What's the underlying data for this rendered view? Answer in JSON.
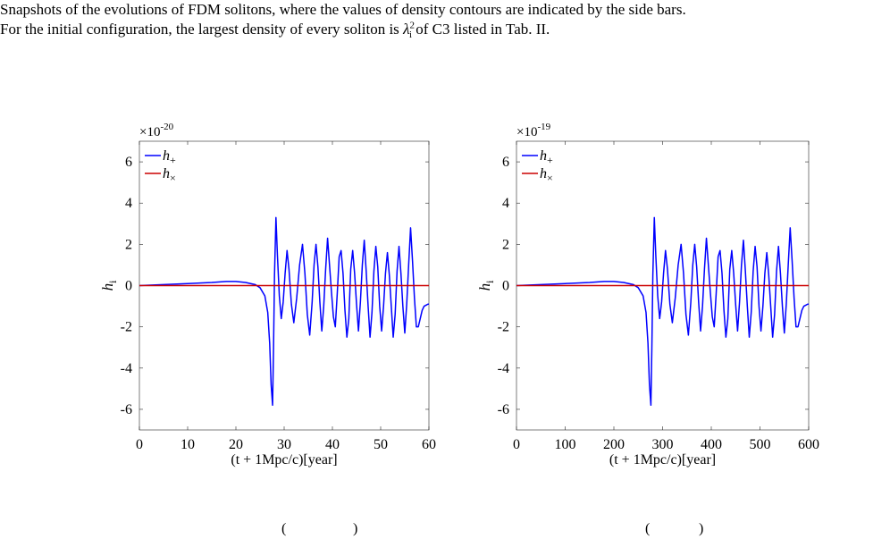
{
  "caption": {
    "line1": "Snapshots of the evolutions of FDM solitons, where the values of density contours are indicated by the side bars.",
    "line2_a": "For the initial configuration, the largest density of every soliton is ",
    "line2_sym": "λ",
    "line2_sup": "2",
    "line2_sub": "i",
    "line2_b": " of C3 listed in Tab. II."
  },
  "subcaptions": [
    "(",
    ")",
    "(",
    ")"
  ],
  "chart_data": [
    {
      "type": "line",
      "multiplier_base": "×10",
      "multiplier_exp": "-20",
      "ylabel": "h_i",
      "xlabel": "(t + 1Mpc/c)[year]",
      "xlim": [
        0,
        60
      ],
      "ylim": [
        -7,
        7
      ],
      "xticks": [
        0,
        10,
        20,
        30,
        40,
        50,
        60
      ],
      "yticks": [
        -6,
        -4,
        -2,
        0,
        2,
        4,
        6
      ],
      "xtick_labels": [
        "0",
        "10",
        "20",
        "30",
        "40",
        "50",
        "60"
      ],
      "ytick_labels": [
        "-6",
        "-4",
        "-2",
        "0",
        "2",
        "4",
        "6"
      ],
      "legend_position": "top-left",
      "series": [
        {
          "name": "h_+",
          "color": "#0000ff",
          "x": [
            0,
            5,
            10,
            15,
            18,
            20,
            22,
            24,
            25,
            26,
            26.6,
            27.0,
            27.3,
            27.6,
            27.8,
            28.0,
            28.3,
            28.6,
            29.0,
            29.4,
            29.8,
            30.2,
            30.6,
            31.0,
            31.5,
            32.0,
            32.6,
            33.2,
            33.8,
            34.3,
            34.8,
            35.3,
            35.8,
            36.2,
            36.6,
            37.0,
            37.4,
            37.8,
            38.2,
            38.6,
            39.0,
            39.4,
            39.8,
            40.2,
            40.6,
            41.0,
            41.4,
            41.8,
            42.2,
            42.6,
            43.0,
            43.4,
            43.8,
            44.2,
            44.6,
            45.0,
            45.4,
            45.8,
            46.2,
            46.6,
            47.0,
            47.4,
            47.8,
            48.2,
            48.6,
            49.0,
            49.4,
            49.8,
            50.2,
            50.6,
            51.0,
            51.4,
            51.8,
            52.2,
            52.6,
            53.0,
            53.4,
            53.8,
            54.2,
            54.6,
            55.0,
            55.4,
            55.8,
            56.2,
            56.6,
            57.0,
            57.4,
            57.8,
            58.2,
            58.6,
            59.0,
            59.4,
            59.8,
            60
          ],
          "y": [
            0,
            0.05,
            0.1,
            0.15,
            0.2,
            0.2,
            0.15,
            0.05,
            -0.1,
            -0.5,
            -1.3,
            -2.8,
            -4.8,
            -5.8,
            -3.0,
            0.5,
            3.3,
            1.5,
            -0.5,
            -1.6,
            -0.8,
            0.6,
            1.7,
            0.8,
            -0.9,
            -1.8,
            -0.6,
            1.0,
            2.0,
            0.6,
            -1.4,
            -2.4,
            -0.8,
            1.0,
            2.0,
            0.9,
            -0.8,
            -2.2,
            -1.0,
            0.8,
            2.3,
            1.0,
            -0.3,
            -1.5,
            -2.0,
            -0.4,
            1.4,
            1.7,
            0.6,
            -1.2,
            -2.5,
            -1.6,
            0.8,
            1.7,
            0.6,
            -0.9,
            -2.2,
            -0.8,
            1.0,
            2.2,
            0.7,
            -1.0,
            -2.5,
            -1.3,
            0.7,
            1.9,
            0.9,
            -1.0,
            -2.2,
            -1.0,
            0.6,
            1.6,
            0.5,
            -1.0,
            -2.5,
            -1.4,
            0.7,
            1.9,
            0.6,
            -1.0,
            -2.3,
            -0.9,
            1.0,
            2.8,
            1.2,
            -0.6,
            -2.0,
            -2.0,
            -1.6,
            -1.2,
            -1.0,
            -0.95,
            -0.9,
            -0.9
          ]
        },
        {
          "name": "h_×",
          "color": "#cc0000",
          "x": [
            0,
            60
          ],
          "y": [
            0,
            0
          ]
        }
      ]
    },
    {
      "type": "line",
      "multiplier_base": "×10",
      "multiplier_exp": "-19",
      "ylabel": "h_i",
      "xlabel": "(t + 1Mpc/c)[year]",
      "xlim": [
        0,
        600
      ],
      "ylim": [
        -7,
        7
      ],
      "xticks": [
        0,
        100,
        200,
        300,
        400,
        500,
        600
      ],
      "yticks": [
        -6,
        -4,
        -2,
        0,
        2,
        4,
        6
      ],
      "xtick_labels": [
        "0",
        "100",
        "200",
        "300",
        "400",
        "500",
        "600"
      ],
      "ytick_labels": [
        "-6",
        "-4",
        "-2",
        "0",
        "2",
        "4",
        "6"
      ],
      "legend_position": "top-left",
      "series": [
        {
          "name": "h_+",
          "color": "#0000ff",
          "x": [
            0,
            50,
            100,
            150,
            180,
            200,
            220,
            240,
            250,
            260,
            266,
            270,
            273,
            276,
            278,
            280,
            283,
            286,
            290,
            294,
            298,
            302,
            306,
            310,
            315,
            320,
            326,
            332,
            338,
            343,
            348,
            353,
            358,
            362,
            366,
            370,
            374,
            378,
            382,
            386,
            390,
            394,
            398,
            402,
            406,
            410,
            414,
            418,
            422,
            426,
            430,
            434,
            438,
            442,
            446,
            450,
            454,
            458,
            462,
            466,
            470,
            474,
            478,
            482,
            486,
            490,
            494,
            498,
            502,
            506,
            510,
            514,
            518,
            522,
            526,
            530,
            534,
            538,
            542,
            546,
            550,
            554,
            558,
            562,
            566,
            570,
            574,
            578,
            582,
            586,
            590,
            594,
            598,
            600
          ],
          "y": [
            0,
            0.05,
            0.1,
            0.15,
            0.2,
            0.2,
            0.15,
            0.05,
            -0.1,
            -0.5,
            -1.3,
            -2.8,
            -4.8,
            -5.8,
            -3.0,
            0.5,
            3.3,
            1.5,
            -0.5,
            -1.6,
            -0.8,
            0.6,
            1.7,
            0.8,
            -0.9,
            -1.8,
            -0.6,
            1.0,
            2.0,
            0.6,
            -1.4,
            -2.4,
            -0.8,
            1.0,
            2.0,
            0.9,
            -0.8,
            -2.2,
            -1.0,
            0.8,
            2.3,
            1.0,
            -0.3,
            -1.5,
            -2.0,
            -0.4,
            1.4,
            1.7,
            0.6,
            -1.2,
            -2.5,
            -1.6,
            0.8,
            1.7,
            0.6,
            -0.9,
            -2.2,
            -0.8,
            1.0,
            2.2,
            0.7,
            -1.0,
            -2.5,
            -1.3,
            0.7,
            1.9,
            0.9,
            -1.0,
            -2.2,
            -1.0,
            0.6,
            1.6,
            0.5,
            -1.0,
            -2.5,
            -1.4,
            0.7,
            1.9,
            0.6,
            -1.0,
            -2.3,
            -0.9,
            1.0,
            2.8,
            1.2,
            -0.6,
            -2.0,
            -2.0,
            -1.6,
            -1.2,
            -1.0,
            -0.95,
            -0.9,
            -0.9
          ]
        },
        {
          "name": "h_×",
          "color": "#cc0000",
          "x": [
            0,
            600
          ],
          "y": [
            0,
            0
          ]
        }
      ]
    }
  ]
}
